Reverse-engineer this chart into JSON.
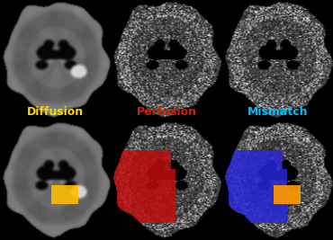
{
  "labels": [
    "Diffusion",
    "Perfusion",
    "Mismatch"
  ],
  "label_colors": [
    "#FFD700",
    "#CC2200",
    "#00BFFF"
  ],
  "background_color": "#000000",
  "figure_width": 3.7,
  "figure_height": 2.67,
  "dpi": 100,
  "label_fontsize": 9,
  "label_fontweight": "bold",
  "yellow_color": [
    1.0,
    0.75,
    0.0
  ],
  "red_color": [
    0.75,
    0.05,
    0.05
  ],
  "blue_color": [
    0.15,
    0.15,
    0.85
  ],
  "orange_color": [
    1.0,
    0.6,
    0.0
  ]
}
